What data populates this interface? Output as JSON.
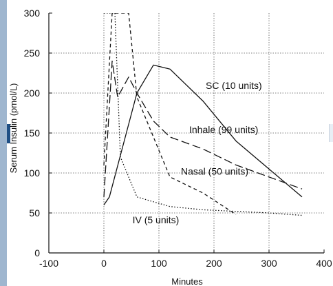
{
  "chart_data": {
    "type": "line",
    "xlabel": "Minutes",
    "ylabel": "Serum Insulin (pmol/L)",
    "xlim": [
      -100,
      400
    ],
    "ylim": [
      0,
      300
    ],
    "xticks": [
      -100,
      0,
      100,
      200,
      300,
      400
    ],
    "yticks": [
      0,
      50,
      100,
      150,
      200,
      250,
      300
    ],
    "x_tick_labels": [
      "-100",
      "0",
      "100",
      "200",
      "300",
      "400"
    ],
    "y_tick_labels": [
      "0",
      "50",
      "100",
      "150",
      "200",
      "250",
      "300"
    ],
    "grid": true,
    "series": [
      {
        "name": "SC (10 units)",
        "style": "solid",
        "x": [
          0,
          10,
          60,
          90,
          120,
          180,
          240,
          300,
          360
        ],
        "y": [
          60,
          70,
          200,
          235,
          230,
          190,
          140,
          105,
          70
        ]
      },
      {
        "name": "Inhale (99 units)",
        "style": "long-dash",
        "x": [
          0,
          15,
          25,
          45,
          60,
          90,
          120,
          180,
          240,
          300,
          360
        ],
        "y": [
          70,
          240,
          195,
          220,
          200,
          165,
          145,
          130,
          110,
          95,
          80
        ]
      },
      {
        "name": "Nasal (50 units)",
        "style": "short-dash",
        "x": [
          0,
          15,
          30,
          45,
          60,
          120,
          180,
          240
        ],
        "y": [
          110,
          300,
          300,
          300,
          195,
          95,
          75,
          48
        ]
      },
      {
        "name": "IV (5 units)",
        "style": "dotted",
        "x": [
          0,
          2,
          10,
          20,
          30,
          60,
          120,
          180,
          240,
          300,
          360
        ],
        "y": [
          300,
          300,
          300,
          300,
          120,
          70,
          58,
          54,
          52,
          50,
          47
        ]
      }
    ],
    "annotations": [
      {
        "text": "SC (10 units)",
        "x": 185,
        "y": 205
      },
      {
        "text": "Inhale (99 units)",
        "x": 155,
        "y": 150
      },
      {
        "text": "Nasal (50 units)",
        "x": 140,
        "y": 98
      },
      {
        "text": "IV (5 units)",
        "x": 52,
        "y": 37
      }
    ]
  }
}
